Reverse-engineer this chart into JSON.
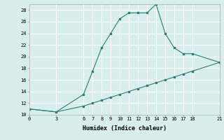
{
  "xlabel": "Humidex (Indice chaleur)",
  "x_ticks": [
    0,
    3,
    6,
    7,
    8,
    9,
    10,
    11,
    12,
    13,
    14,
    15,
    16,
    17,
    18,
    21
  ],
  "line1_x": [
    0,
    3,
    6,
    7,
    8,
    9,
    10,
    11,
    12,
    13,
    14,
    15,
    16,
    17,
    18,
    21
  ],
  "line1_y": [
    11,
    10.5,
    13.5,
    17.5,
    21.5,
    24,
    26.5,
    27.5,
    27.5,
    27.5,
    29,
    24,
    21.5,
    20.5,
    20.5,
    19
  ],
  "line2_x": [
    0,
    3,
    6,
    7,
    8,
    9,
    10,
    11,
    12,
    13,
    14,
    15,
    16,
    17,
    18,
    21
  ],
  "line2_y": [
    11,
    10.5,
    11.5,
    12,
    12.5,
    13,
    13.5,
    14,
    14.5,
    15,
    15.5,
    16,
    16.5,
    17,
    17.5,
    19
  ],
  "line_color": "#2e7d72",
  "bg_color": "#d8eeec",
  "grid_color": "#ffffff",
  "ylim": [
    10,
    29
  ],
  "yticks": [
    10,
    12,
    14,
    16,
    18,
    20,
    22,
    24,
    26,
    28
  ],
  "xlim": [
    0,
    21
  ]
}
